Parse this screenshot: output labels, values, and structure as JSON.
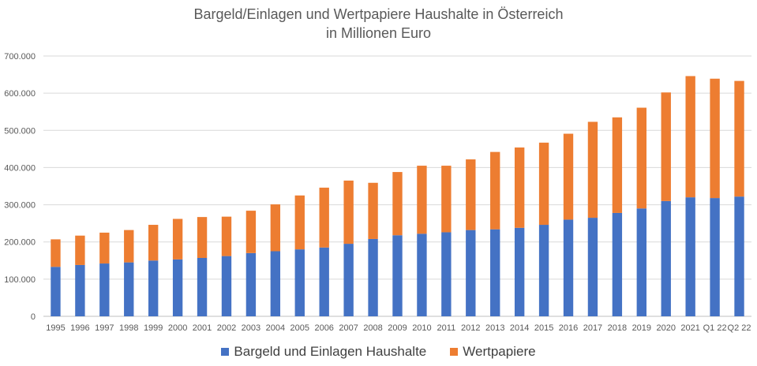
{
  "chart_data": {
    "type": "bar",
    "stacked": true,
    "title": "Bargeld/Einlagen und Wertpapiere Haushalte in Österreich",
    "subtitle": "in Millionen Euro",
    "xlabel": "",
    "ylabel": "",
    "ylim": [
      0,
      700000
    ],
    "yticks": [
      0,
      100000,
      200000,
      300000,
      400000,
      500000,
      600000,
      700000
    ],
    "ytick_labels": [
      "0",
      "100.000",
      "200.000",
      "300.000",
      "400.000",
      "500.000",
      "600.000",
      "700.000"
    ],
    "grid": true,
    "legend_position": "bottom",
    "categories": [
      "1995",
      "1996",
      "1997",
      "1998",
      "1999",
      "2000",
      "2001",
      "2002",
      "2003",
      "2004",
      "2005",
      "2006",
      "2007",
      "2008",
      "2009",
      "2010",
      "2011",
      "2012",
      "2013",
      "2014",
      "2015",
      "2016",
      "2017",
      "2018",
      "2019",
      "2020",
      "2021",
      "Q1 22",
      "Q2 22"
    ],
    "series": [
      {
        "name": "Bargeld und Einlagen Haushalte",
        "color": "#4472C4",
        "values": [
          133000,
          138000,
          142000,
          145000,
          150000,
          153000,
          157000,
          162000,
          170000,
          175000,
          180000,
          185000,
          195000,
          208000,
          218000,
          222000,
          226000,
          232000,
          234000,
          238000,
          246000,
          260000,
          265000,
          278000,
          290000,
          310000,
          320000,
          318000,
          322000
        ]
      },
      {
        "name": "Wertpapiere",
        "color": "#ED7D31",
        "values": [
          74000,
          79000,
          83000,
          87000,
          96000,
          109000,
          110000,
          106000,
          114000,
          126000,
          145000,
          161000,
          170000,
          151000,
          170000,
          183000,
          179000,
          190000,
          208000,
          216000,
          221000,
          231000,
          258000,
          257000,
          271000,
          292000,
          326000,
          321000,
          311000
        ]
      }
    ]
  }
}
